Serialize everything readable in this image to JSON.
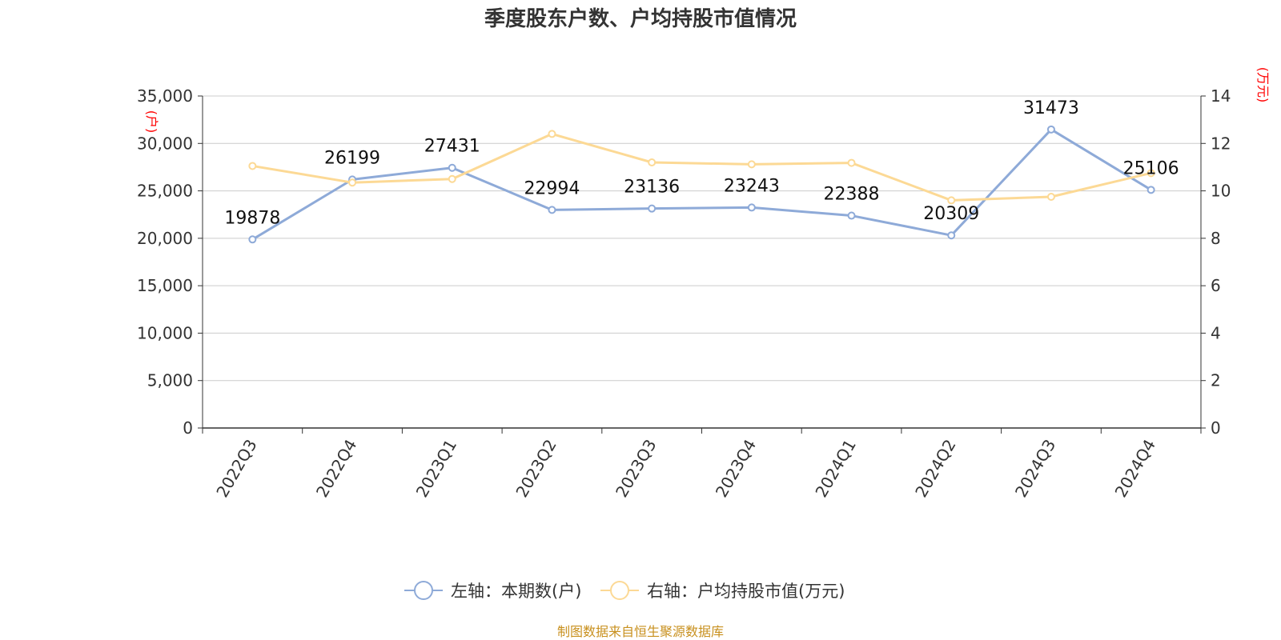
{
  "chart_data": {
    "type": "line",
    "title": "季度股东户数、户均持股市值情况",
    "categories": [
      "2022Q3",
      "2022Q4",
      "2023Q1",
      "2023Q2",
      "2023Q3",
      "2023Q4",
      "2024Q1",
      "2024Q2",
      "2024Q3",
      "2024Q4"
    ],
    "series": [
      {
        "name": "左轴：本期数(户)",
        "axis": "left",
        "color": "#8eaad8",
        "values": [
          19878,
          26199,
          27431,
          22994,
          23136,
          23243,
          22388,
          20309,
          31473,
          25106
        ],
        "labels": [
          "19878",
          "26199",
          "27431",
          "22994",
          "23136",
          "23243",
          "22388",
          "20309",
          "31473",
          "25106"
        ]
      },
      {
        "name": "右轴：户均持股市值(万元)",
        "axis": "right",
        "color": "#fcd995",
        "values": [
          11.05,
          10.35,
          10.5,
          12.4,
          11.2,
          11.12,
          11.18,
          9.6,
          9.75,
          10.75
        ]
      }
    ],
    "y_left": {
      "unit": "(户)",
      "ylim": [
        0,
        35000
      ],
      "ticks": [
        0,
        5000,
        10000,
        15000,
        20000,
        25000,
        30000,
        35000
      ],
      "tick_labels": [
        "0",
        "5,000",
        "10,000",
        "15,000",
        "20,000",
        "25,000",
        "30,000",
        "35,000"
      ]
    },
    "y_right": {
      "unit": "(万元)",
      "ylim": [
        0,
        14
      ],
      "ticks": [
        0,
        2,
        4,
        6,
        8,
        10,
        12,
        14
      ],
      "tick_labels": [
        "0",
        "2",
        "4",
        "6",
        "8",
        "10",
        "12",
        "14"
      ]
    },
    "grid": true,
    "legend_position": "bottom",
    "source": "制图数据来自恒生聚源数据库"
  }
}
